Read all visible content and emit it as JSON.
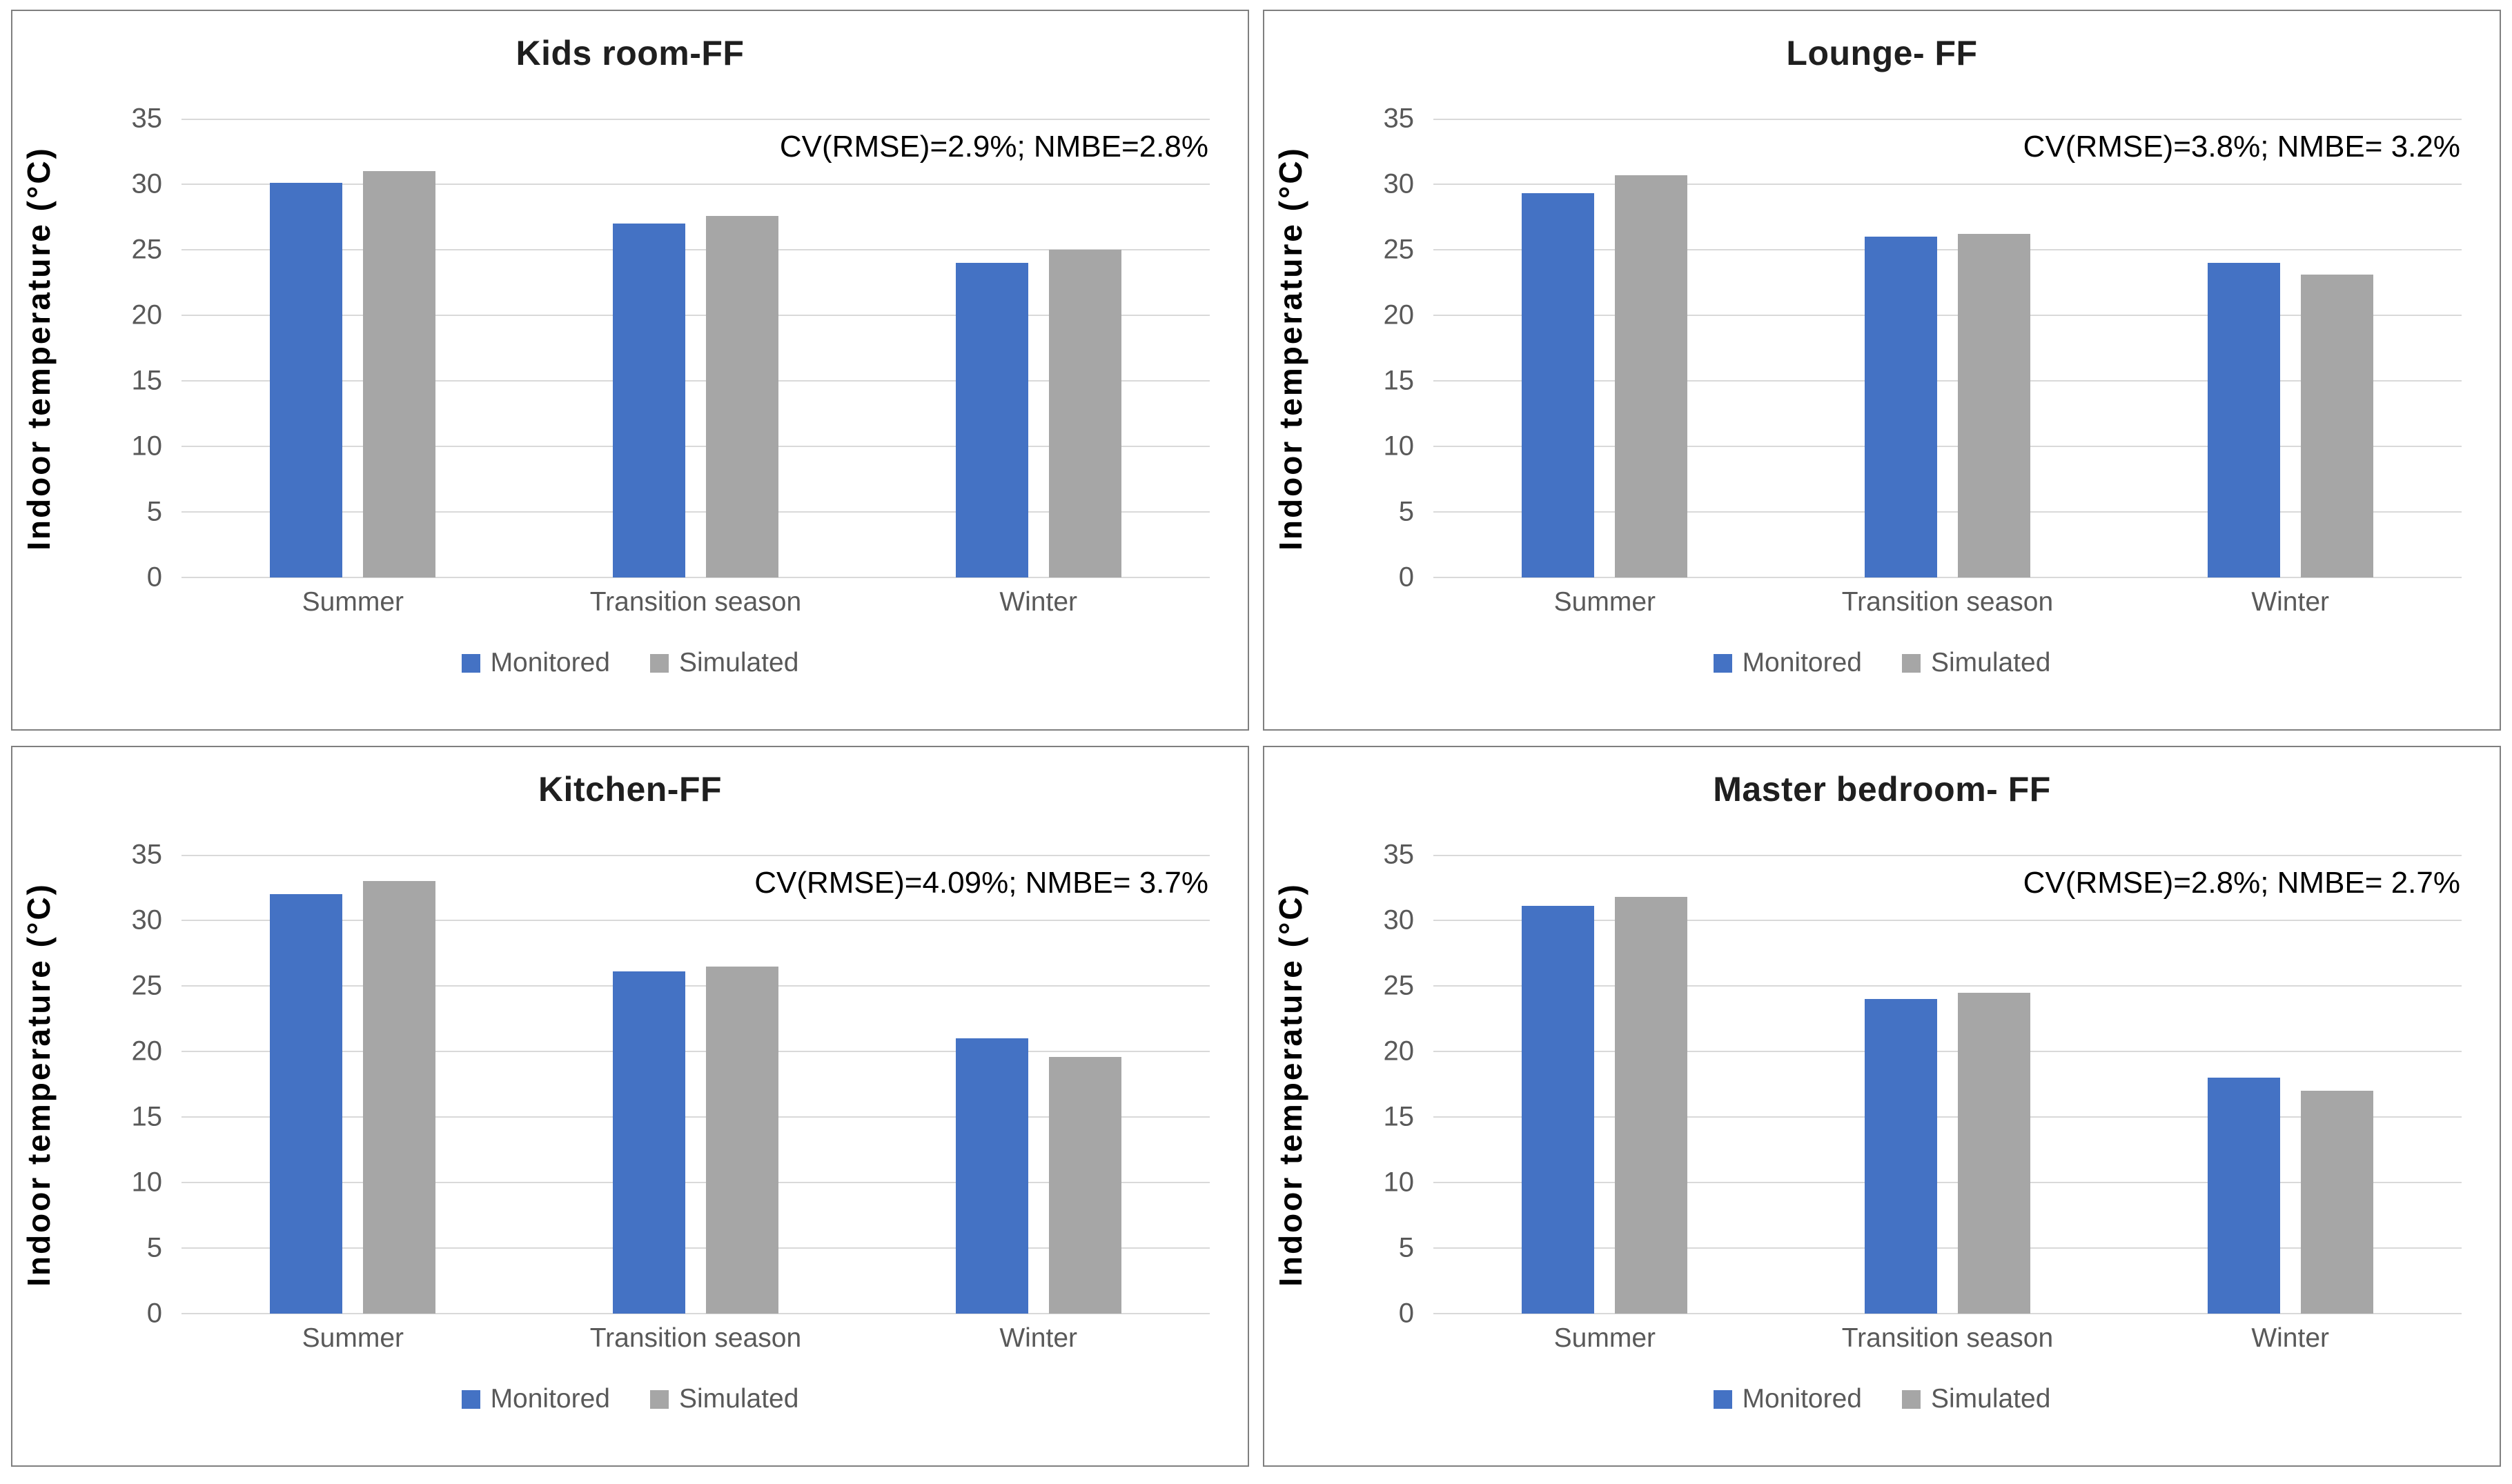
{
  "colors": {
    "background": "#ffffff",
    "panel_border": "#7f7f7f",
    "gridline": "#d9d9d9",
    "axis_text": "#595959",
    "title_text": "#1f1f1f",
    "annotation_text": "#000000",
    "ylabel_text": "#000000",
    "monitored": "#4472c4",
    "simulated": "#a6a6a6"
  },
  "chart_data": [
    {
      "type": "bar",
      "title": "Kids room-FF",
      "annotation": "CV(RMSE)=2.9%; NMBE=2.8%",
      "ylabel": "Indoor temperature (°C)",
      "xlabel": "",
      "categories": [
        "Summer",
        "Transition season",
        "Winter"
      ],
      "series": [
        {
          "name": "Monitored",
          "color": "#4472c4",
          "values": [
            30.1,
            27.0,
            24.0
          ]
        },
        {
          "name": "Simulated",
          "color": "#a6a6a6",
          "values": [
            31.0,
            27.6,
            25.0
          ]
        }
      ],
      "ylim": [
        0,
        35
      ],
      "yticks": [
        0,
        5,
        10,
        15,
        20,
        25,
        30,
        35
      ],
      "grid": true,
      "legend_position": "bottom"
    },
    {
      "type": "bar",
      "title": "Lounge- FF",
      "annotation": "CV(RMSE)=3.8%; NMBE= 3.2%",
      "ylabel": "Indoor temperature (°C)",
      "xlabel": "",
      "categories": [
        "Summer",
        "Transition season",
        "Winter"
      ],
      "series": [
        {
          "name": "Monitored",
          "color": "#4472c4",
          "values": [
            29.3,
            26.0,
            24.0
          ]
        },
        {
          "name": "Simulated",
          "color": "#a6a6a6",
          "values": [
            30.7,
            26.2,
            23.1
          ]
        }
      ],
      "ylim": [
        0,
        35
      ],
      "yticks": [
        0,
        5,
        10,
        15,
        20,
        25,
        30,
        35
      ],
      "grid": true,
      "legend_position": "bottom"
    },
    {
      "type": "bar",
      "title": "Kitchen-FF",
      "annotation": "CV(RMSE)=4.09%; NMBE= 3.7%",
      "ylabel": "Indoor temperature (°C)",
      "xlabel": "",
      "categories": [
        "Summer",
        "Transition season",
        "Winter"
      ],
      "series": [
        {
          "name": "Monitored",
          "color": "#4472c4",
          "values": [
            32.0,
            26.1,
            21.0
          ]
        },
        {
          "name": "Simulated",
          "color": "#a6a6a6",
          "values": [
            33.0,
            26.5,
            19.6
          ]
        }
      ],
      "ylim": [
        0,
        35
      ],
      "yticks": [
        0,
        5,
        10,
        15,
        20,
        25,
        30,
        35
      ],
      "grid": true,
      "legend_position": "bottom"
    },
    {
      "type": "bar",
      "title": "Master bedroom- FF",
      "annotation": "CV(RMSE)=2.8%; NMBE= 2.7%",
      "ylabel": "Indoor temperature (°C)",
      "xlabel": "",
      "categories": [
        "Summer",
        "Transition season",
        "Winter"
      ],
      "series": [
        {
          "name": "Monitored",
          "color": "#4472c4",
          "values": [
            31.1,
            24.0,
            18.0
          ]
        },
        {
          "name": "Simulated",
          "color": "#a6a6a6",
          "values": [
            31.8,
            24.5,
            17.0
          ]
        }
      ],
      "ylim": [
        0,
        35
      ],
      "yticks": [
        0,
        5,
        10,
        15,
        20,
        25,
        30,
        35
      ],
      "grid": true,
      "legend_position": "bottom"
    }
  ]
}
